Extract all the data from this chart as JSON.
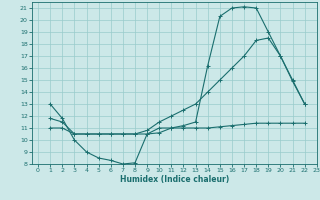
{
  "xlabel": "Humidex (Indice chaleur)",
  "xlim": [
    -0.5,
    23
  ],
  "ylim": [
    8,
    21.5
  ],
  "yticks": [
    8,
    9,
    10,
    11,
    12,
    13,
    14,
    15,
    16,
    17,
    18,
    19,
    20,
    21
  ],
  "xticks": [
    0,
    1,
    2,
    3,
    4,
    5,
    6,
    7,
    8,
    9,
    10,
    11,
    12,
    13,
    14,
    15,
    16,
    17,
    18,
    19,
    20,
    21,
    22,
    23
  ],
  "bg_color": "#cce8e8",
  "grid_color": "#99cccc",
  "line_color": "#1a6e6e",
  "line1_x": [
    1,
    2,
    3,
    4,
    5,
    6,
    7,
    8,
    9,
    10,
    11,
    12,
    13,
    14,
    15,
    16,
    17,
    18,
    19,
    20,
    21,
    22
  ],
  "line1_y": [
    13.0,
    11.8,
    10.0,
    9.0,
    8.5,
    8.3,
    8.0,
    8.1,
    10.5,
    10.6,
    11.0,
    11.2,
    11.5,
    16.2,
    20.3,
    21.0,
    21.1,
    21.0,
    19.0,
    17.0,
    14.9,
    13.0
  ],
  "line2_x": [
    1,
    2,
    3,
    4,
    5,
    6,
    7,
    8,
    9,
    10,
    11,
    12,
    13,
    14,
    15,
    16,
    17,
    18,
    19,
    20,
    21,
    22
  ],
  "line2_y": [
    11.0,
    11.0,
    10.5,
    10.5,
    10.5,
    10.5,
    10.5,
    10.5,
    10.5,
    11.0,
    11.0,
    11.0,
    11.0,
    11.0,
    11.1,
    11.2,
    11.3,
    11.4,
    11.4,
    11.4,
    11.4,
    11.4
  ],
  "line3_x": [
    1,
    2,
    3,
    4,
    5,
    6,
    7,
    8,
    9,
    10,
    11,
    12,
    13,
    14,
    15,
    16,
    17,
    18,
    19,
    20,
    21,
    22
  ],
  "line3_y": [
    11.8,
    11.5,
    10.5,
    10.5,
    10.5,
    10.5,
    10.5,
    10.5,
    10.8,
    11.5,
    12.0,
    12.5,
    13.0,
    14.0,
    15.0,
    16.0,
    17.0,
    18.3,
    18.5,
    17.0,
    15.0,
    13.0
  ],
  "tick_fontsize": 4.5,
  "xlabel_fontsize": 5.5,
  "lw": 0.8,
  "ms": 2.5
}
